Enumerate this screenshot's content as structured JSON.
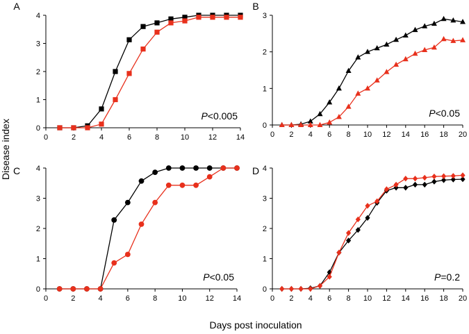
{
  "figure": {
    "ylabel": "Disease index",
    "xlabel": "Days post inoculation",
    "colors": {
      "series1": "#000000",
      "series2": "#e8301c",
      "axis": "#000000"
    }
  },
  "chart_data": [
    {
      "type": "line",
      "panel": "A",
      "p_prefix": "P",
      "p_value": "<0.005",
      "marker": "square",
      "xlim": [
        0,
        14
      ],
      "ylim": [
        0,
        4
      ],
      "xticks": [
        0,
        2,
        4,
        6,
        8,
        10,
        12,
        14
      ],
      "yticks": [
        0,
        1,
        2,
        3,
        4
      ],
      "series": [
        {
          "name": "black",
          "color": "#000000",
          "x": [
            1,
            2,
            3,
            4,
            5,
            6,
            7,
            8,
            9,
            10,
            11,
            12,
            13,
            14
          ],
          "values": [
            0,
            0,
            0.07,
            0.67,
            2.0,
            3.13,
            3.6,
            3.73,
            3.87,
            3.93,
            4.0,
            4.0,
            4.0,
            4.0
          ]
        },
        {
          "name": "red",
          "color": "#e8301c",
          "x": [
            1,
            2,
            3,
            4,
            5,
            6,
            7,
            8,
            9,
            10,
            11,
            12,
            13,
            14
          ],
          "values": [
            0,
            0,
            0,
            0.13,
            1.0,
            1.93,
            2.8,
            3.4,
            3.73,
            3.8,
            3.93,
            3.93,
            3.93,
            3.93
          ]
        }
      ]
    },
    {
      "type": "line",
      "panel": "B",
      "p_prefix": "P",
      "p_value": "<0.05",
      "marker": "triangle",
      "xlim": [
        0,
        20
      ],
      "ylim": [
        0,
        3
      ],
      "xticks": [
        0,
        2,
        4,
        6,
        8,
        10,
        12,
        14,
        16,
        18,
        20
      ],
      "yticks": [
        0,
        1,
        2,
        3
      ],
      "series": [
        {
          "name": "black",
          "color": "#000000",
          "x": [
            1,
            2,
            3,
            4,
            5,
            6,
            7,
            8,
            9,
            10,
            11,
            12,
            13,
            14,
            15,
            16,
            17,
            18,
            19,
            20
          ],
          "values": [
            0,
            0,
            0.02,
            0.1,
            0.3,
            0.62,
            1.0,
            1.48,
            1.85,
            2.0,
            2.1,
            2.2,
            2.33,
            2.45,
            2.6,
            2.7,
            2.77,
            2.9,
            2.86,
            2.82
          ]
        },
        {
          "name": "red",
          "color": "#e8301c",
          "x": [
            1,
            2,
            3,
            4,
            5,
            6,
            7,
            8,
            9,
            10,
            11,
            12,
            13,
            14,
            15,
            16,
            17,
            18,
            19,
            20
          ],
          "values": [
            0,
            0,
            0,
            0,
            0,
            0.07,
            0.22,
            0.5,
            0.86,
            1.0,
            1.22,
            1.45,
            1.65,
            1.8,
            1.95,
            2.05,
            2.12,
            2.35,
            2.3,
            2.32
          ]
        }
      ]
    },
    {
      "type": "line",
      "panel": "C",
      "p_prefix": "P",
      "p_value": "<0.05",
      "marker": "circle",
      "xlim": [
        0,
        14
      ],
      "ylim": [
        0,
        4
      ],
      "xticks": [
        0,
        2,
        4,
        6,
        8,
        10,
        12,
        14
      ],
      "yticks": [
        0,
        1,
        2,
        3,
        4
      ],
      "series": [
        {
          "name": "black",
          "color": "#000000",
          "x": [
            1,
            2,
            3,
            4,
            5,
            6,
            7,
            8,
            9,
            10,
            11,
            12,
            13,
            14
          ],
          "values": [
            0,
            0,
            0,
            0,
            2.28,
            2.86,
            3.57,
            3.86,
            4.0,
            4.0,
            4.0,
            4.0,
            4.0,
            4.0
          ]
        },
        {
          "name": "red",
          "color": "#e8301c",
          "x": [
            1,
            2,
            3,
            4,
            5,
            6,
            7,
            8,
            9,
            10,
            11,
            12,
            13,
            14
          ],
          "values": [
            0,
            0,
            0,
            0,
            0.86,
            1.14,
            2.14,
            2.86,
            3.43,
            3.43,
            3.43,
            3.71,
            4.0,
            4.0
          ]
        }
      ]
    },
    {
      "type": "line",
      "panel": "D",
      "p_prefix": "P",
      "p_value": "=0.2",
      "marker": "diamond",
      "xlim": [
        0,
        20
      ],
      "ylim": [
        0,
        4
      ],
      "xticks": [
        0,
        2,
        4,
        6,
        8,
        10,
        12,
        14,
        16,
        18,
        20
      ],
      "yticks": [
        0,
        1,
        2,
        3,
        4
      ],
      "series": [
        {
          "name": "black",
          "color": "#000000",
          "x": [
            1,
            2,
            3,
            4,
            5,
            6,
            7,
            8,
            9,
            10,
            11,
            12,
            13,
            14,
            15,
            16,
            17,
            18,
            19,
            20
          ],
          "values": [
            0,
            0,
            0,
            0.02,
            0.1,
            0.55,
            1.2,
            1.6,
            1.95,
            2.35,
            2.85,
            3.25,
            3.35,
            3.35,
            3.45,
            3.45,
            3.55,
            3.6,
            3.62,
            3.63
          ]
        },
        {
          "name": "red",
          "color": "#e8301c",
          "x": [
            1,
            2,
            3,
            4,
            5,
            6,
            7,
            8,
            9,
            10,
            11,
            12,
            13,
            14,
            15,
            16,
            17,
            18,
            19,
            20
          ],
          "values": [
            0,
            0,
            0,
            0,
            0.1,
            0.4,
            1.2,
            1.85,
            2.3,
            2.75,
            2.9,
            3.3,
            3.45,
            3.65,
            3.65,
            3.68,
            3.72,
            3.73,
            3.74,
            3.76
          ]
        }
      ]
    }
  ]
}
